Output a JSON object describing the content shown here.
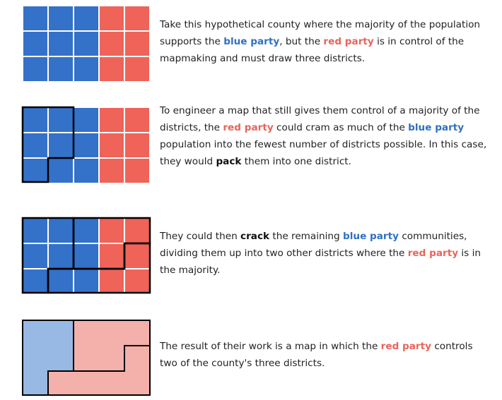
{
  "colors": {
    "blue": "#3471c9",
    "red": "#ef6359",
    "light_blue": "#97b9e4",
    "light_red": "#f4b0aa",
    "grid_line": "#ffffff",
    "boundary": "#000000",
    "blue_text": "#2f71c2",
    "red_text": "#e8645a"
  },
  "grid": {
    "rows": 3,
    "cols": 5,
    "cell_colors": [
      "blue",
      "blue",
      "blue",
      "red",
      "red"
    ]
  },
  "steps": [
    {
      "id": "intro",
      "paragraph": [
        {
          "text": "Take this hypothetical county where the majority of the population supports the ",
          "style": "normal"
        },
        {
          "text": "blue party",
          "style": "blue"
        },
        {
          "text": ", but the ",
          "style": "normal"
        },
        {
          "text": "red party",
          "style": "red"
        },
        {
          "text": " is in control of the mapmaking and must draw three districts.",
          "style": "normal"
        }
      ]
    },
    {
      "id": "pack",
      "paragraph": [
        {
          "text": "To engineer a map that still gives them control of a majority of the districts, the ",
          "style": "normal"
        },
        {
          "text": "red party",
          "style": "red"
        },
        {
          "text": " could cram as much of the ",
          "style": "normal"
        },
        {
          "text": "blue party",
          "style": "blue"
        },
        {
          "text": " population into the fewest number of districts possible. In this case, they would ",
          "style": "normal"
        },
        {
          "text": "pack",
          "style": "strong"
        },
        {
          "text": " them into one district.",
          "style": "normal"
        }
      ]
    },
    {
      "id": "crack",
      "paragraph": [
        {
          "text": "They could then ",
          "style": "normal"
        },
        {
          "text": "crack",
          "style": "strong"
        },
        {
          "text": " the remaining ",
          "style": "normal"
        },
        {
          "text": "blue party",
          "style": "blue"
        },
        {
          "text": " communities, dividing them up into two other districts where the ",
          "style": "normal"
        },
        {
          "text": "red party",
          "style": "red"
        },
        {
          "text": " is in the majority.",
          "style": "normal"
        }
      ]
    },
    {
      "id": "result",
      "paragraph": [
        {
          "text": "The result of their work is a map in which the ",
          "style": "normal"
        },
        {
          "text": "red party",
          "style": "red"
        },
        {
          "text": " controls two of the county's three districts.",
          "style": "normal"
        }
      ]
    }
  ]
}
